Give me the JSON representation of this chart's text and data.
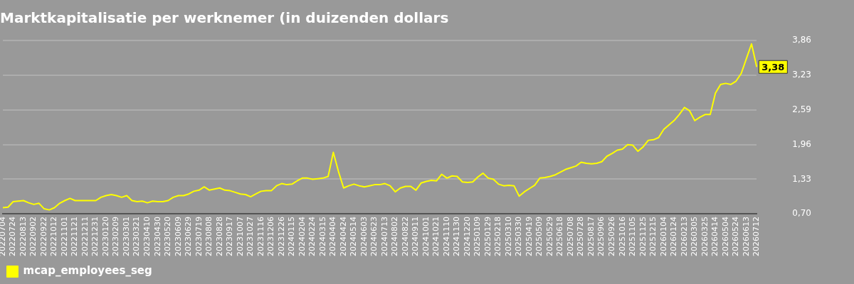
{
  "chart_data": {
    "type": "line",
    "title": "Marktkapitalisatie per werknemer (in duizenden dollars",
    "categories": [
      "20220704",
      null,
      "20220724",
      null,
      "20220813",
      null,
      "20220902",
      null,
      "20220922",
      null,
      "20221012",
      null,
      "20221101",
      null,
      "20221121",
      null,
      "20221211",
      null,
      "20221231",
      null,
      "20230120",
      null,
      "20230209",
      null,
      "20230301",
      null,
      "20230321",
      null,
      "20230410",
      null,
      "20230430",
      null,
      "20230520",
      null,
      "20230609",
      null,
      "20230629",
      null,
      "20230719",
      null,
      "20230808",
      null,
      "20230828",
      null,
      "20230917",
      null,
      "20231007",
      null,
      "20231027",
      null,
      "20231116",
      null,
      "20231206",
      null,
      "20231226",
      null,
      "20240115",
      null,
      "20240204",
      null,
      "20240224",
      null,
      "20240315",
      null,
      "20240404",
      null,
      "20240424",
      null,
      "20240514",
      null,
      "20240603",
      null,
      "20240623",
      null,
      "20240713",
      null,
      "20240802",
      null,
      "20240822",
      null,
      "20240911",
      null,
      "20241001",
      null,
      "20241021",
      null,
      "20241110",
      null,
      "20241130",
      null,
      "20241220",
      null,
      "20250109",
      null,
      "20250129",
      null,
      "20250218",
      null,
      "20250310",
      null,
      "20250330",
      null,
      "20250419",
      null,
      "20250509",
      null,
      "20250529",
      null,
      "20250618",
      null,
      "20250708",
      null,
      "20250728",
      null,
      "20250817",
      null,
      "20250906",
      null,
      "20250926",
      null,
      "20251016",
      null,
      "20251105",
      null,
      "20251125",
      null,
      "20251215",
      null,
      "20260104",
      null,
      "20260124",
      null,
      "20260213",
      null,
      "20260305",
      null,
      "20260325",
      null,
      "20260414",
      null,
      "20260504",
      null,
      "20260524",
      null,
      "20260613",
      null,
      "20260712"
    ],
    "series": [
      {
        "name": "mcap_employees_seg",
        "color": "#ffff00",
        "values": [
          0.81,
          0.82,
          0.92,
          0.93,
          0.94,
          0.9,
          0.87,
          0.89,
          0.79,
          0.77,
          0.81,
          0.89,
          0.94,
          0.98,
          0.94,
          0.94,
          0.94,
          0.94,
          0.94,
          1.0,
          1.03,
          1.05,
          1.03,
          1.0,
          1.03,
          0.94,
          0.92,
          0.93,
          0.9,
          0.93,
          0.92,
          0.92,
          0.94,
          1.0,
          1.03,
          1.03,
          1.06,
          1.11,
          1.13,
          1.19,
          1.13,
          1.15,
          1.17,
          1.13,
          1.12,
          1.09,
          1.06,
          1.05,
          1.01,
          1.06,
          1.11,
          1.12,
          1.12,
          1.21,
          1.25,
          1.23,
          1.24,
          1.3,
          1.35,
          1.35,
          1.33,
          1.34,
          1.35,
          1.38,
          1.82,
          1.47,
          1.17,
          1.21,
          1.24,
          1.21,
          1.19,
          1.21,
          1.23,
          1.23,
          1.25,
          1.21,
          1.1,
          1.17,
          1.2,
          1.2,
          1.13,
          1.26,
          1.29,
          1.31,
          1.3,
          1.42,
          1.35,
          1.39,
          1.38,
          1.28,
          1.27,
          1.28,
          1.37,
          1.44,
          1.35,
          1.33,
          1.24,
          1.21,
          1.22,
          1.21,
          1.02,
          1.1,
          1.16,
          1.22,
          1.35,
          1.36,
          1.38,
          1.41,
          1.46,
          1.51,
          1.54,
          1.57,
          1.64,
          1.62,
          1.61,
          1.62,
          1.65,
          1.75,
          1.8,
          1.86,
          1.88,
          1.96,
          1.95,
          1.84,
          1.92,
          2.04,
          2.05,
          2.09,
          2.24,
          2.32,
          2.4,
          2.51,
          2.64,
          2.58,
          2.4,
          2.46,
          2.51,
          2.51,
          2.9,
          3.06,
          3.08,
          3.06,
          3.12,
          3.26,
          3.53,
          3.8,
          3.38
        ]
      }
    ],
    "ylim": [
      0.7,
      3.86
    ],
    "yticks": [
      {
        "value": 0.7,
        "label": "0,70"
      },
      {
        "value": 1.33,
        "label": "1,33"
      },
      {
        "value": 1.96,
        "label": "1,96"
      },
      {
        "value": 2.59,
        "label": "2,59"
      },
      {
        "value": 3.23,
        "label": "3,23"
      },
      {
        "value": 3.86,
        "label": "3,86"
      }
    ],
    "grid": "y",
    "legend": "bottom left",
    "marker": "none",
    "line_style": "solid",
    "annotations": [
      {
        "text": "3,38",
        "x": "20260712",
        "y": 3.38
      }
    ]
  }
}
